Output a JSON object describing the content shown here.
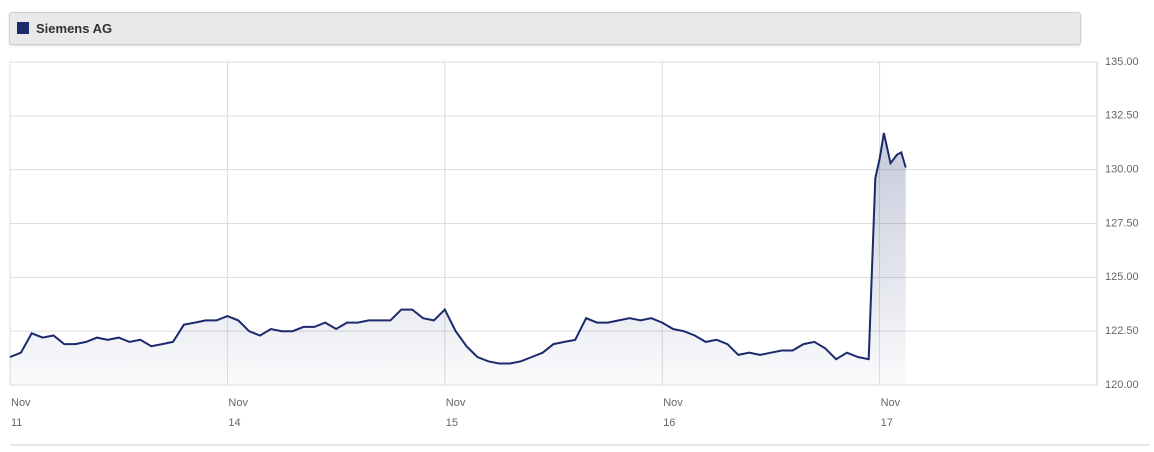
{
  "chart_data": {
    "type": "line",
    "xlim": [
      0,
      5
    ],
    "xticks": [
      {
        "value": 0,
        "label": "Nov 11"
      },
      {
        "value": 1,
        "label": "Nov 14"
      },
      {
        "value": 2,
        "label": "Nov 15"
      },
      {
        "value": 3,
        "label": "Nov 16"
      },
      {
        "value": 4,
        "label": "Nov 17"
      }
    ],
    "ylim": [
      120,
      135
    ],
    "yticks": [
      {
        "value": 120,
        "label": "120.00"
      },
      {
        "value": 122.5,
        "label": "122.50"
      },
      {
        "value": 125,
        "label": "125.00"
      },
      {
        "value": 127.5,
        "label": "127.50"
      },
      {
        "value": 130,
        "label": "130.00"
      },
      {
        "value": 132.5,
        "label": "132.50"
      },
      {
        "value": 135,
        "label": "135.00"
      }
    ],
    "grid": true,
    "x": [
      0,
      0.05,
      0.1,
      0.15,
      0.2,
      0.25,
      0.3,
      0.35,
      0.4,
      0.45,
      0.5,
      0.55,
      0.6,
      0.65,
      0.7,
      0.75,
      0.8,
      0.85,
      0.9,
      0.95,
      1.0,
      1.05,
      1.1,
      1.15,
      1.2,
      1.25,
      1.3,
      1.35,
      1.4,
      1.45,
      1.5,
      1.55,
      1.6,
      1.65,
      1.7,
      1.75,
      1.8,
      1.85,
      1.9,
      1.95,
      2.0,
      2.05,
      2.1,
      2.15,
      2.2,
      2.25,
      2.3,
      2.35,
      2.4,
      2.45,
      2.5,
      2.55,
      2.6,
      2.65,
      2.7,
      2.75,
      2.8,
      2.85,
      2.9,
      2.95,
      3.0,
      3.05,
      3.1,
      3.15,
      3.2,
      3.25,
      3.3,
      3.35,
      3.4,
      3.45,
      3.5,
      3.55,
      3.6,
      3.65,
      3.7,
      3.75,
      3.8,
      3.85,
      3.9,
      3.95,
      3.98,
      4.0,
      4.02,
      4.05,
      4.08,
      4.1,
      4.12
    ],
    "series": [
      {
        "name": "Siemens AG",
        "color": "#1a2a6c",
        "values": [
          121.3,
          121.5,
          122.4,
          122.2,
          122.3,
          121.9,
          121.9,
          122.0,
          122.2,
          122.1,
          122.2,
          122.0,
          122.1,
          121.8,
          121.9,
          122.0,
          122.8,
          122.9,
          123.0,
          123.0,
          123.2,
          123.0,
          122.5,
          122.3,
          122.6,
          122.5,
          122.5,
          122.7,
          122.7,
          122.9,
          122.6,
          122.9,
          122.9,
          123.0,
          123.0,
          123.0,
          123.5,
          123.5,
          123.1,
          123.0,
          123.5,
          122.5,
          121.8,
          121.3,
          121.1,
          121.0,
          121.0,
          121.1,
          121.3,
          121.5,
          121.9,
          122.0,
          122.1,
          123.1,
          122.9,
          122.9,
          123.0,
          123.1,
          123.0,
          123.1,
          122.9,
          122.6,
          122.5,
          122.3,
          122.0,
          122.1,
          121.9,
          121.4,
          121.5,
          121.4,
          121.5,
          121.6,
          121.6,
          121.9,
          122.0,
          121.7,
          121.2,
          121.5,
          121.3,
          121.2,
          129.6,
          130.5,
          131.7,
          130.3,
          130.7,
          130.8,
          130.1
        ]
      }
    ]
  }
}
